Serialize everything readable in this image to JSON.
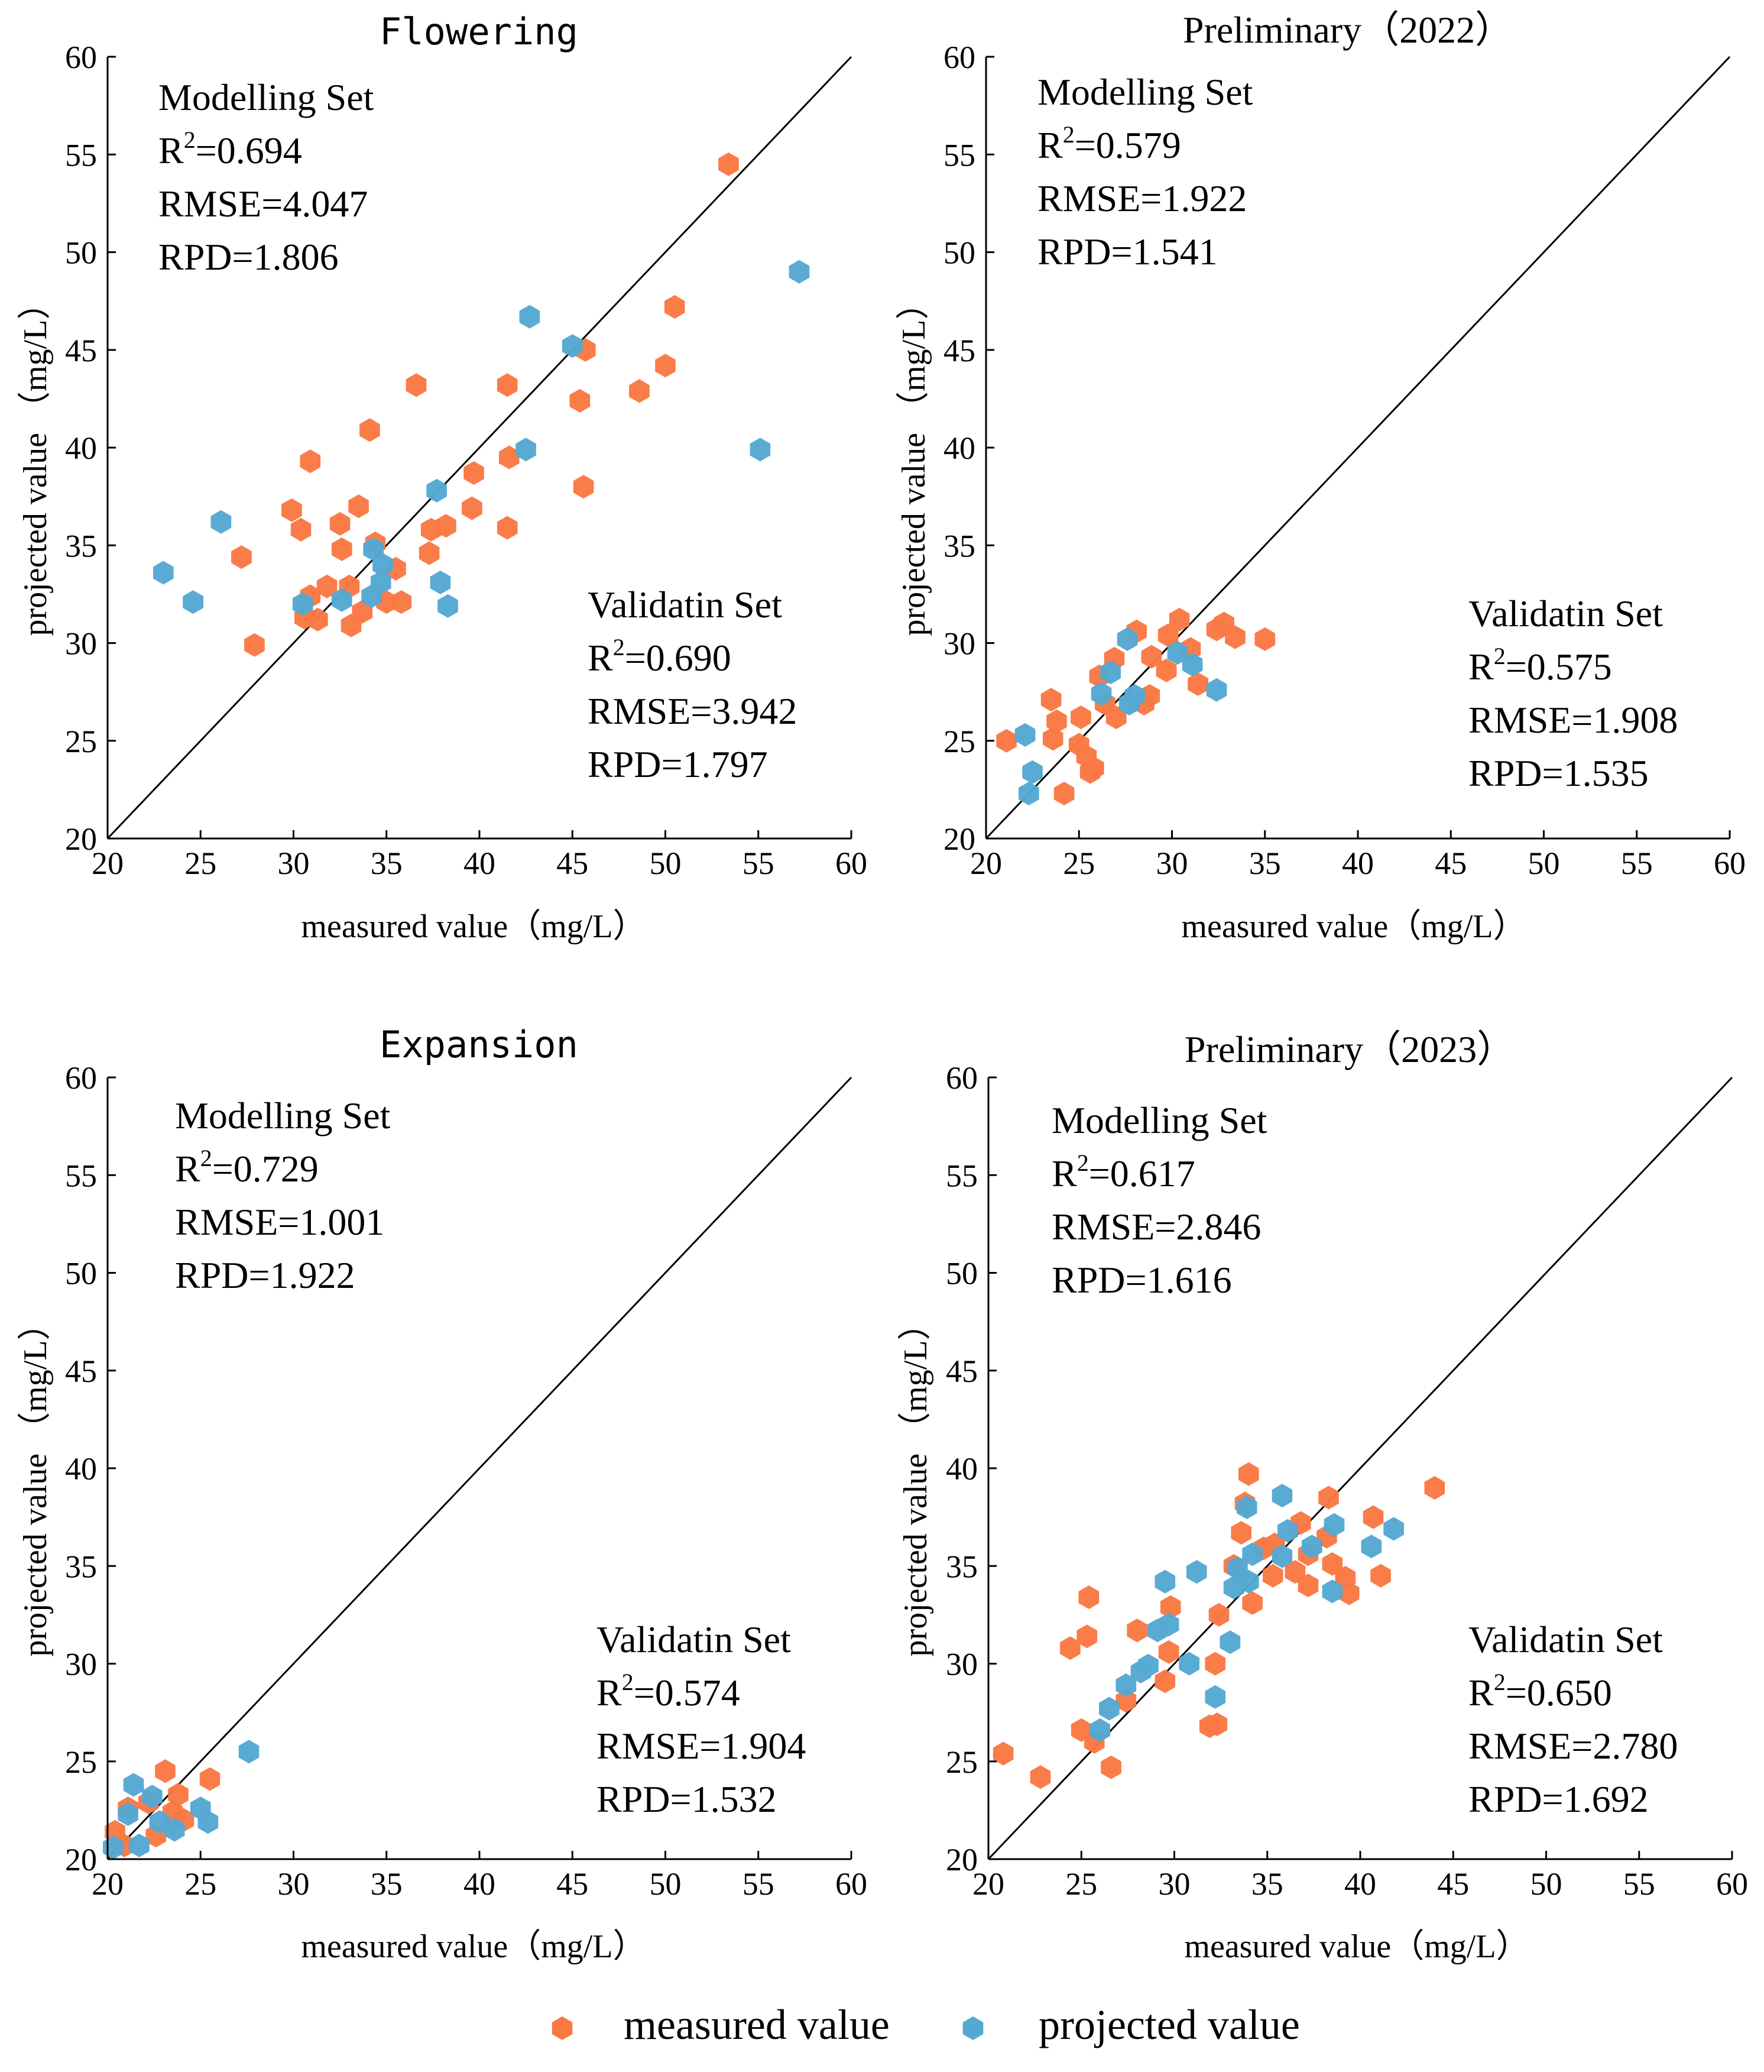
{
  "colors": {
    "modelling": "#FA7843",
    "validation": "#55A8D3",
    "axis": "#000000"
  },
  "legend": {
    "measured_label": "measured value",
    "projected_label": "projected value"
  },
  "chart_data": [
    {
      "type": "scatter",
      "title": "Flowering",
      "xlabel": "measured value（mg/L）",
      "ylabel": "projected value （mg/L）",
      "xlim": [
        20,
        60
      ],
      "ylim": [
        20,
        60
      ],
      "xticks": [
        20,
        25,
        30,
        35,
        40,
        45,
        50,
        55,
        60
      ],
      "yticks": [
        20,
        25,
        30,
        35,
        40,
        45,
        50,
        55,
        60
      ],
      "reference_line": "1:1",
      "modelling_stats": {
        "heading": "Modelling Set",
        "r2": "=0.694",
        "rmse": "RMSE=4.047",
        "rpd": "RPD=1.806"
      },
      "validation_stats": {
        "heading": "Validatin Set",
        "r2": "=0.690",
        "rmse": "RMSE=3.942",
        "rpd": "RPD=1.797"
      },
      "series": [
        {
          "name": "measured value",
          "points": [
            [
              53.4,
              54.5
            ],
            [
              50.5,
              47.2
            ],
            [
              45.7,
              45.0
            ],
            [
              50.0,
              44.2
            ],
            [
              48.6,
              42.9
            ],
            [
              45.4,
              42.4
            ],
            [
              41.5,
              43.2
            ],
            [
              36.6,
              43.2
            ],
            [
              34.1,
              40.9
            ],
            [
              41.6,
              39.5
            ],
            [
              30.9,
              39.3
            ],
            [
              39.7,
              38.7
            ],
            [
              45.6,
              38.0
            ],
            [
              29.9,
              36.8
            ],
            [
              33.5,
              37.0
            ],
            [
              39.6,
              36.9
            ],
            [
              30.4,
              35.8
            ],
            [
              32.5,
              36.1
            ],
            [
              37.4,
              35.8
            ],
            [
              38.2,
              36.0
            ],
            [
              41.5,
              35.9
            ],
            [
              34.4,
              35.1
            ],
            [
              27.2,
              34.4
            ],
            [
              32.6,
              34.8
            ],
            [
              37.3,
              34.6
            ],
            [
              35.5,
              33.8
            ],
            [
              31.8,
              32.9
            ],
            [
              33.0,
              32.9
            ],
            [
              30.9,
              32.4
            ],
            [
              35.0,
              32.1
            ],
            [
              35.8,
              32.1
            ],
            [
              33.7,
              31.6
            ],
            [
              30.6,
              31.3
            ],
            [
              31.3,
              31.2
            ],
            [
              33.1,
              30.9
            ],
            [
              27.9,
              29.9
            ]
          ]
        },
        {
          "name": "projected value",
          "points": [
            [
              57.2,
              49.0
            ],
            [
              42.7,
              46.7
            ],
            [
              45.0,
              45.2
            ],
            [
              55.1,
              39.9
            ],
            [
              42.5,
              39.9
            ],
            [
              37.7,
              37.8
            ],
            [
              26.1,
              36.2
            ],
            [
              34.3,
              34.8
            ],
            [
              34.8,
              34.0
            ],
            [
              23.0,
              33.6
            ],
            [
              37.9,
              33.1
            ],
            [
              34.7,
              33.1
            ],
            [
              24.6,
              32.1
            ],
            [
              30.5,
              32.0
            ],
            [
              32.6,
              32.2
            ],
            [
              38.3,
              31.9
            ],
            [
              34.2,
              32.4
            ]
          ]
        }
      ]
    },
    {
      "type": "scatter",
      "title": "Preliminary（2022）",
      "xlabel": "measured value（mg/L）",
      "ylabel": "projected value （mg/L）",
      "xlim": [
        20,
        60
      ],
      "ylim": [
        20,
        60
      ],
      "xticks": [
        20,
        25,
        30,
        35,
        40,
        45,
        50,
        55,
        60
      ],
      "yticks": [
        20,
        25,
        30,
        35,
        40,
        45,
        50,
        55,
        60
      ],
      "reference_line": "1:1",
      "modelling_stats": {
        "heading": "Modelling Set",
        "r2": "=0.579",
        "rmse": "RMSE=1.922",
        "rpd": "RPD=1.541"
      },
      "validation_stats": {
        "heading": "Validatin Set",
        "r2": "=0.575",
        "rmse": "RMSE=1.908",
        "rpd": "RPD=1.535"
      },
      "series": [
        {
          "name": "measured value",
          "points": [
            [
              30.4,
              31.2
            ],
            [
              32.8,
              31.0
            ],
            [
              32.4,
              30.7
            ],
            [
              28.1,
              30.6
            ],
            [
              29.8,
              30.4
            ],
            [
              33.4,
              30.3
            ],
            [
              35.0,
              30.2
            ],
            [
              31.0,
              29.7
            ],
            [
              26.9,
              29.2
            ],
            [
              28.9,
              29.3
            ],
            [
              29.7,
              28.6
            ],
            [
              26.1,
              28.3
            ],
            [
              31.4,
              27.9
            ],
            [
              28.8,
              27.3
            ],
            [
              23.5,
              27.1
            ],
            [
              28.5,
              26.9
            ],
            [
              26.4,
              26.9
            ],
            [
              27.0,
              26.2
            ],
            [
              23.8,
              26.0
            ],
            [
              25.1,
              26.2
            ],
            [
              23.6,
              25.1
            ],
            [
              25.0,
              24.8
            ],
            [
              21.1,
              25.0
            ],
            [
              25.4,
              24.2
            ],
            [
              25.8,
              23.6
            ],
            [
              25.6,
              23.4
            ],
            [
              24.2,
              22.3
            ]
          ]
        },
        {
          "name": "projected value",
          "points": [
            [
              27.6,
              30.2
            ],
            [
              30.3,
              29.5
            ],
            [
              31.1,
              28.9
            ],
            [
              26.7,
              28.5
            ],
            [
              26.2,
              27.4
            ],
            [
              28.0,
              27.3
            ],
            [
              32.4,
              27.6
            ],
            [
              27.7,
              26.9
            ],
            [
              22.1,
              25.3
            ],
            [
              22.5,
              23.4
            ],
            [
              22.3,
              22.3
            ]
          ]
        }
      ]
    },
    {
      "type": "scatter",
      "title": "Expansion",
      "xlabel": "measured value（mg/L）",
      "ylabel": "projected value （mg/L）",
      "xlim": [
        20,
        60
      ],
      "ylim": [
        20,
        60
      ],
      "xticks": [
        20,
        25,
        30,
        35,
        40,
        45,
        50,
        55,
        60
      ],
      "yticks": [
        20,
        25,
        30,
        35,
        40,
        45,
        50,
        55,
        60
      ],
      "reference_line": "1:1",
      "modelling_stats": {
        "heading": "Modelling Set",
        "r2": "=0.729",
        "rmse": "RMSE=1.001",
        "rpd": "RPD=1.922"
      },
      "validation_stats": {
        "heading": "Validatin Set",
        "r2": "=0.574",
        "rmse": "RMSE=1.904",
        "rpd": "RPD=1.532"
      },
      "series": [
        {
          "name": "measured value",
          "points": [
            [
              23.1,
              24.5
            ],
            [
              25.5,
              24.1
            ],
            [
              23.8,
              23.3
            ],
            [
              22.2,
              22.9
            ],
            [
              21.1,
              22.6
            ],
            [
              24.1,
              22.0
            ],
            [
              20.4,
              21.4
            ],
            [
              22.6,
              21.2
            ],
            [
              20.9,
              20.7
            ],
            [
              23.5,
              22.4
            ]
          ]
        },
        {
          "name": "projected value",
          "points": [
            [
              27.6,
              25.5
            ],
            [
              21.4,
              23.8
            ],
            [
              22.4,
              23.2
            ],
            [
              25.0,
              22.6
            ],
            [
              21.1,
              22.3
            ],
            [
              25.4,
              21.9
            ],
            [
              23.6,
              21.5
            ],
            [
              22.8,
              21.9
            ],
            [
              21.7,
              20.7
            ],
            [
              20.3,
              20.6
            ]
          ]
        }
      ]
    },
    {
      "type": "scatter",
      "title": "Preliminary（2023）",
      "xlabel": "measured value（mg/L）",
      "ylabel": "projected value （mg/L）",
      "xlim": [
        20,
        60
      ],
      "ylim": [
        20,
        60
      ],
      "xticks": [
        20,
        25,
        30,
        35,
        40,
        45,
        50,
        55,
        60
      ],
      "yticks": [
        20,
        25,
        30,
        35,
        40,
        45,
        50,
        55,
        60
      ],
      "reference_line": "1:1",
      "modelling_stats": {
        "heading": "Modelling Set",
        "r2": "=0.617",
        "rmse": "RMSE=2.846",
        "rpd": "RPD=1.616"
      },
      "validation_stats": {
        "heading": "Validatin Set",
        "r2": "=0.650",
        "rmse": "RMSE=2.780",
        "rpd": "RPD=1.692"
      },
      "series": [
        {
          "name": "measured value",
          "points": [
            [
              34.0,
              39.7
            ],
            [
              44.0,
              39.0
            ],
            [
              38.3,
              38.5
            ],
            [
              33.8,
              38.2
            ],
            [
              40.7,
              37.5
            ],
            [
              36.8,
              37.2
            ],
            [
              33.6,
              36.7
            ],
            [
              38.2,
              36.5
            ],
            [
              35.4,
              36.1
            ],
            [
              34.8,
              35.9
            ],
            [
              37.2,
              35.6
            ],
            [
              38.5,
              35.1
            ],
            [
              33.2,
              35.0
            ],
            [
              36.5,
              34.7
            ],
            [
              39.2,
              34.4
            ],
            [
              41.1,
              34.5
            ],
            [
              35.3,
              34.5
            ],
            [
              37.2,
              34.0
            ],
            [
              39.4,
              33.6
            ],
            [
              34.2,
              33.1
            ],
            [
              25.4,
              33.4
            ],
            [
              29.8,
              32.9
            ],
            [
              32.4,
              32.5
            ],
            [
              25.3,
              31.4
            ],
            [
              24.4,
              30.8
            ],
            [
              29.7,
              30.6
            ],
            [
              32.2,
              30.0
            ],
            [
              29.5,
              29.1
            ],
            [
              25.0,
              26.6
            ],
            [
              27.4,
              28.1
            ],
            [
              32.3,
              26.9
            ],
            [
              31.9,
              26.8
            ],
            [
              25.7,
              26.0
            ],
            [
              20.8,
              25.4
            ],
            [
              26.6,
              24.7
            ],
            [
              22.8,
              24.2
            ],
            [
              28.0,
              31.7
            ]
          ]
        },
        {
          "name": "projected value",
          "points": [
            [
              35.8,
              38.6
            ],
            [
              33.9,
              38.0
            ],
            [
              38.6,
              37.1
            ],
            [
              41.8,
              36.9
            ],
            [
              36.1,
              36.8
            ],
            [
              37.4,
              36.0
            ],
            [
              40.6,
              36.0
            ],
            [
              34.2,
              35.6
            ],
            [
              35.8,
              35.5
            ],
            [
              33.4,
              34.9
            ],
            [
              31.2,
              34.7
            ],
            [
              29.5,
              34.2
            ],
            [
              34.0,
              34.2
            ],
            [
              38.5,
              33.7
            ],
            [
              33.2,
              33.9
            ],
            [
              29.7,
              32.0
            ],
            [
              29.1,
              31.7
            ],
            [
              33.0,
              31.1
            ],
            [
              30.8,
              30.0
            ],
            [
              28.6,
              29.9
            ],
            [
              28.2,
              29.6
            ],
            [
              27.4,
              28.9
            ],
            [
              32.2,
              28.3
            ],
            [
              26.5,
              27.7
            ],
            [
              26.0,
              26.6
            ]
          ]
        }
      ]
    }
  ]
}
